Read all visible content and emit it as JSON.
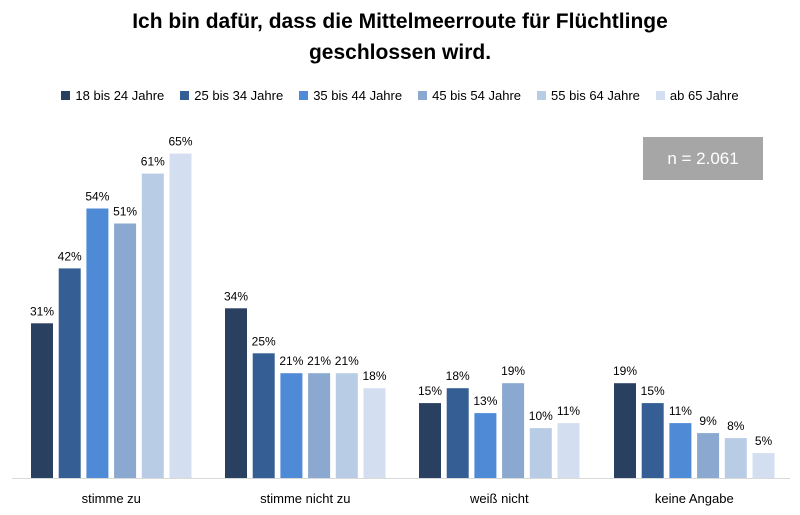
{
  "title_line1": "Ich bin dafür, dass die Mittelmeerroute für Flüchtlinge",
  "title_line2": "geschlossen wird.",
  "n_label": "n = 2.061",
  "chart_data": {
    "type": "bar",
    "title": "Ich bin dafür, dass die Mittelmeerroute für Flüchtlinge geschlossen wird.",
    "categories": [
      "stimme zu",
      "stimme nicht zu",
      "weiß nicht",
      "keine Angabe"
    ],
    "value_suffix": "%",
    "ylim": [
      0,
      70
    ],
    "grid": false,
    "legend_position": "top",
    "series": [
      {
        "name": "18 bis 24 Jahre",
        "color": "#2a4060",
        "values": [
          31,
          34,
          15,
          19
        ]
      },
      {
        "name": "25 bis 34 Jahre",
        "color": "#355f94",
        "values": [
          42,
          25,
          18,
          15
        ]
      },
      {
        "name": "35 bis 44 Jahre",
        "color": "#4f8ad6",
        "values": [
          54,
          21,
          13,
          11
        ]
      },
      {
        "name": "45 bis 54 Jahre",
        "color": "#8aa8d0",
        "values": [
          51,
          21,
          19,
          9
        ]
      },
      {
        "name": "55 bis 64 Jahre",
        "color": "#b9cce5",
        "values": [
          61,
          21,
          10,
          8
        ]
      },
      {
        "name": "ab 65 Jahre",
        "color": "#d3dff0",
        "values": [
          65,
          18,
          11,
          5
        ]
      }
    ]
  }
}
